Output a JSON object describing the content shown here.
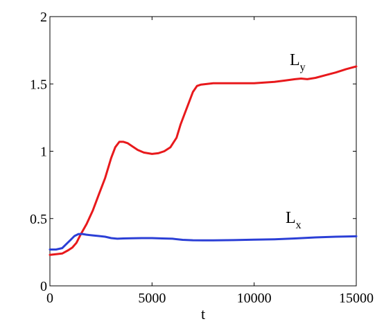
{
  "chart_data": {
    "type": "line",
    "title": "",
    "xlabel": "t",
    "ylabel": "",
    "xlim": [
      0,
      15000
    ],
    "ylim": [
      0,
      2
    ],
    "x_ticks": [
      "0",
      "5000",
      "10000",
      "15000"
    ],
    "y_ticks": [
      "0",
      "0.5",
      "1",
      "1.5",
      "2"
    ],
    "grid": false,
    "series": [
      {
        "label_main": "L",
        "label_sub": "y",
        "color": "#e8191c",
        "x": [
          0,
          300,
          600,
          900,
          1100,
          1300,
          1500,
          1800,
          2100,
          2400,
          2700,
          3000,
          3200,
          3400,
          3600,
          3800,
          4000,
          4300,
          4600,
          5000,
          5300,
          5600,
          5900,
          6200,
          6400,
          6600,
          6800,
          7000,
          7200,
          7400,
          7700,
          8000,
          8500,
          9000,
          9500,
          10000,
          10500,
          11000,
          11500,
          12000,
          12300,
          12600,
          13000,
          13500,
          14000,
          14500,
          15000
        ],
        "y": [
          0.23,
          0.235,
          0.24,
          0.265,
          0.285,
          0.32,
          0.38,
          0.46,
          0.56,
          0.68,
          0.8,
          0.95,
          1.03,
          1.07,
          1.07,
          1.06,
          1.04,
          1.01,
          0.99,
          0.98,
          0.985,
          1.0,
          1.03,
          1.1,
          1.2,
          1.28,
          1.36,
          1.44,
          1.485,
          1.495,
          1.5,
          1.505,
          1.505,
          1.505,
          1.505,
          1.505,
          1.51,
          1.515,
          1.525,
          1.535,
          1.54,
          1.535,
          1.545,
          1.565,
          1.585,
          1.61,
          1.63
        ]
      },
      {
        "label_main": "L",
        "label_sub": "x",
        "color": "#2b3fd6",
        "x": [
          0,
          300,
          600,
          800,
          1000,
          1200,
          1400,
          1600,
          1800,
          2100,
          2400,
          2700,
          3000,
          3300,
          3600,
          4000,
          4500,
          5000,
          5500,
          6000,
          6500,
          7000,
          7500,
          8000,
          9000,
          10000,
          11000,
          12000,
          13000,
          14000,
          15000
        ],
        "y": [
          0.27,
          0.27,
          0.28,
          0.31,
          0.34,
          0.37,
          0.385,
          0.385,
          0.38,
          0.375,
          0.37,
          0.365,
          0.355,
          0.35,
          0.352,
          0.353,
          0.355,
          0.355,
          0.352,
          0.35,
          0.342,
          0.339,
          0.338,
          0.338,
          0.34,
          0.343,
          0.346,
          0.352,
          0.36,
          0.365,
          0.368
        ]
      }
    ]
  }
}
